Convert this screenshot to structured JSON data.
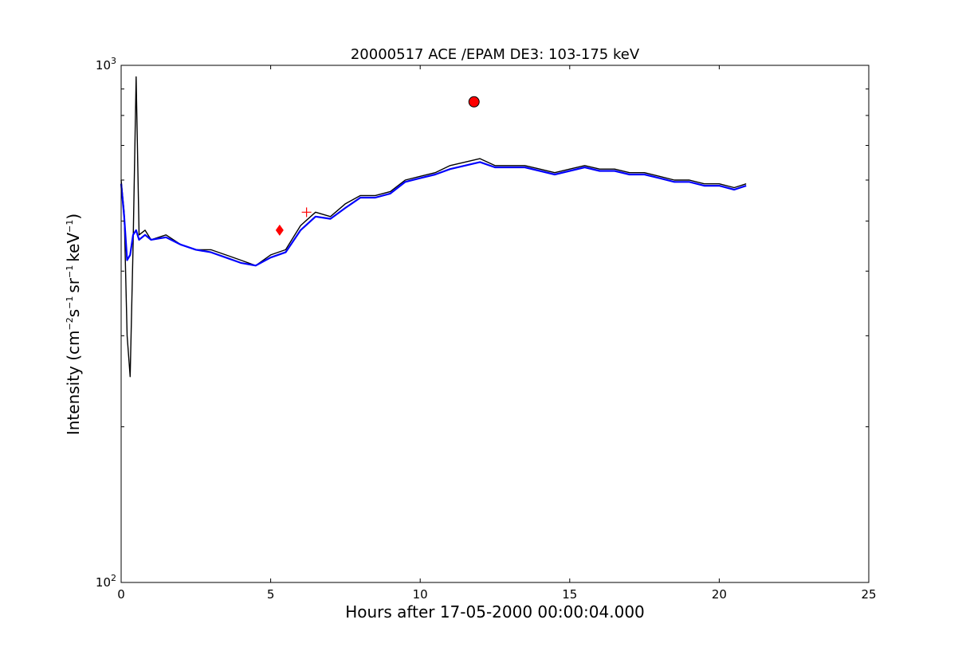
{
  "chart_data": {
    "type": "line",
    "title": "20000517 ACE /EPAM DE3: 103-175 keV",
    "xlabel": "Hours after 17-05-2000 00:00:04.000",
    "ylabel": {
      "base": "Intensity (cm",
      "e1": "−2",
      "p2": "s",
      "e2": "−1",
      "p3": "sr",
      "e3": "−1",
      "p4": "keV",
      "e4": "−1",
      "p5": ")"
    },
    "xlim": [
      0,
      25
    ],
    "ylim": [
      100,
      1000
    ],
    "yscale": "log",
    "xticks": [
      "0",
      "5",
      "10",
      "15",
      "20",
      "25"
    ],
    "yticks": [
      {
        "base": "10",
        "exp": "2"
      },
      {
        "base": "10",
        "exp": "3"
      }
    ],
    "grid": false,
    "series": [
      {
        "color": "#000000",
        "x": [
          0,
          0.1,
          0.2,
          0.3,
          0.4,
          0.5,
          0.6,
          0.8,
          1.0,
          1.5,
          2.0,
          2.5,
          3.0,
          3.5,
          4.0,
          4.5,
          5.0,
          5.5,
          6.0,
          6.5,
          7.0,
          7.5,
          8.0,
          8.5,
          9.0,
          9.5,
          10.0,
          10.5,
          11.0,
          11.5,
          12.0,
          12.5,
          13.0,
          13.5,
          14.0,
          14.5,
          15.0,
          15.5,
          16.0,
          16.5,
          17.0,
          17.5,
          18.0,
          18.5,
          19.0,
          19.5,
          20.0,
          20.5,
          20.9
        ],
        "y": [
          600,
          520,
          300,
          250,
          450,
          950,
          470,
          480,
          460,
          470,
          450,
          440,
          440,
          430,
          420,
          410,
          430,
          440,
          490,
          520,
          510,
          540,
          560,
          560,
          570,
          600,
          610,
          620,
          640,
          650,
          660,
          640,
          640,
          640,
          630,
          620,
          630,
          640,
          630,
          630,
          620,
          620,
          610,
          600,
          600,
          590,
          590,
          580,
          590
        ]
      },
      {
        "color": "#0000ff",
        "x": [
          0,
          0.1,
          0.2,
          0.3,
          0.4,
          0.5,
          0.6,
          0.8,
          1.0,
          1.5,
          2.0,
          2.5,
          3.0,
          3.5,
          4.0,
          4.5,
          5.0,
          5.5,
          6.0,
          6.5,
          7.0,
          7.5,
          8.0,
          8.5,
          9.0,
          9.5,
          10.0,
          10.5,
          11.0,
          11.5,
          12.0,
          12.5,
          13.0,
          13.5,
          14.0,
          14.5,
          15.0,
          15.5,
          16.0,
          16.5,
          17.0,
          17.5,
          18.0,
          18.5,
          19.0,
          19.5,
          20.0,
          20.5,
          20.9
        ],
        "y": [
          590,
          510,
          420,
          430,
          470,
          480,
          460,
          470,
          460,
          465,
          450,
          440,
          435,
          425,
          415,
          410,
          425,
          435,
          480,
          510,
          505,
          530,
          555,
          555,
          565,
          595,
          605,
          615,
          630,
          640,
          650,
          635,
          635,
          635,
          625,
          615,
          625,
          635,
          625,
          625,
          615,
          615,
          605,
          595,
          595,
          585,
          585,
          575,
          585
        ]
      }
    ],
    "markers": [
      {
        "x": 5.3,
        "y": 480,
        "color": "#ff0000",
        "shape": "diamond"
      },
      {
        "x": 6.2,
        "y": 520,
        "color": "#ff0000",
        "shape": "plus"
      },
      {
        "x": 11.8,
        "y": 850,
        "color": "#ff0000",
        "shape": "circle"
      }
    ]
  }
}
